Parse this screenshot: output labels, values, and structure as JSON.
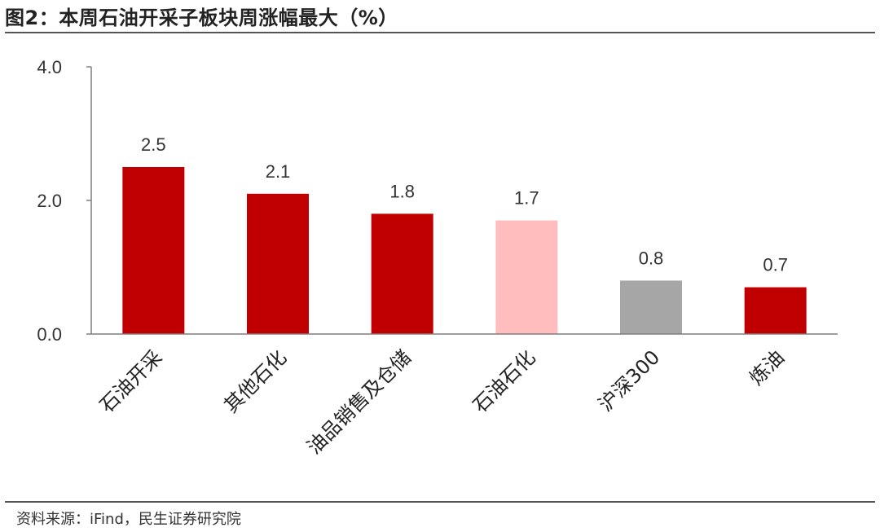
{
  "header": {
    "title": "图2：本周石油开采子板块周涨幅最大（%）"
  },
  "footer": {
    "source": "资料来源：iFind，民生证券研究院"
  },
  "chart_data": {
    "type": "bar",
    "title": "图2：本周石油开采子板块周涨幅最大（%）",
    "xlabel": "",
    "ylabel": "",
    "categories": [
      "石油开采",
      "其他石化",
      "油品销售及仓储",
      "石油石化",
      "沪深300",
      "炼油"
    ],
    "values": [
      2.5,
      2.1,
      1.8,
      1.7,
      0.8,
      0.7
    ],
    "value_labels": [
      "2.5",
      "2.1",
      "1.8",
      "1.7",
      "0.8",
      "0.7"
    ],
    "bar_colors": [
      "#C00000",
      "#C00000",
      "#C00000",
      "#FFBDBD",
      "#A6A6A6",
      "#C00000"
    ],
    "ylim": [
      0,
      4
    ],
    "yticks": [
      0,
      2,
      4
    ],
    "ytick_labels": [
      "0.0",
      "2.0",
      "4.0"
    ],
    "grid": false,
    "legend": "none"
  }
}
